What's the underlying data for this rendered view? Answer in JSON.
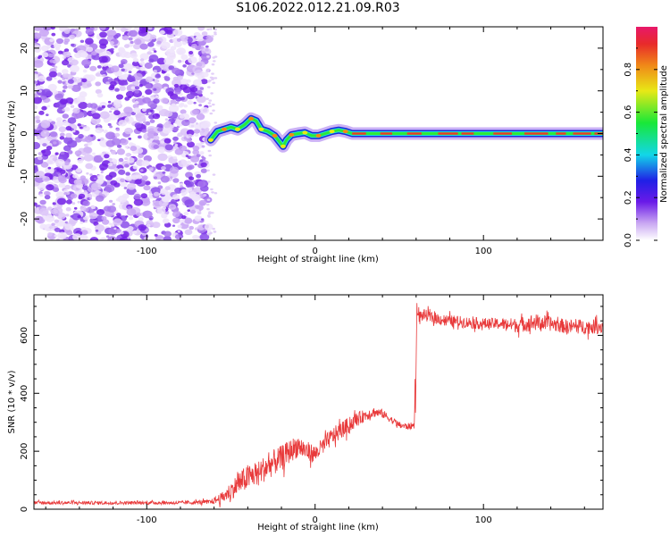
{
  "title": "S106.2022.012.21.09.R03",
  "colors": {
    "snr_line": "#e8393a",
    "ridge_outer": "#1a2ad8",
    "ridge_mid": "#1fe0e0",
    "ridge_core": "#e83b2a",
    "noise": "#8a3cf0"
  },
  "chart_data": [
    {
      "type": "heatmap",
      "xlabel": "Height of straight line (km)",
      "ylabel": "Frequency (Hz)",
      "xlim": [
        -167,
        171
      ],
      "ylim": [
        -25,
        25
      ],
      "xticks": [
        -100,
        0,
        100
      ],
      "yticks": [
        -20,
        -10,
        0,
        10,
        20
      ],
      "colorbar": {
        "label": "Normalized spectral amplitude",
        "ticks": [
          0.0,
          0.2,
          0.4,
          0.6,
          0.8
        ],
        "range": [
          0,
          1
        ]
      },
      "noise_region_x": [
        -167,
        -62
      ],
      "ridge": {
        "x": [
          -62,
          -58,
          -54,
          -50,
          -46,
          -42,
          -38,
          -35,
          -32,
          -28,
          -24,
          -21,
          -19,
          -17,
          -14,
          -10,
          -6,
          -2,
          2,
          6,
          10,
          14,
          18,
          22,
          171
        ],
        "freq": [
          -1.5,
          0.5,
          1.0,
          1.5,
          1.0,
          2.0,
          3.5,
          3.0,
          1.0,
          0.5,
          -0.5,
          -2.0,
          -3.0,
          -1.5,
          -0.3,
          0.0,
          0.2,
          -0.5,
          -0.5,
          0.0,
          0.5,
          0.8,
          0.5,
          0.0,
          0.0
        ]
      }
    },
    {
      "type": "line",
      "xlabel": "Height of straight line (km)",
      "ylabel": "SNR (10 * v/v)",
      "xlim": [
        -167,
        171
      ],
      "ylim": [
        0,
        740
      ],
      "xticks": [
        -100,
        0,
        100
      ],
      "yticks": [
        0,
        200,
        400,
        600
      ],
      "series": [
        {
          "x": [
            -167,
            -140,
            -110,
            -80,
            -62,
            -55,
            -45,
            -40,
            -35,
            -30,
            -25,
            -20,
            -15,
            -10,
            -5,
            0,
            5,
            10,
            15,
            20,
            25,
            30,
            35,
            40,
            45,
            50,
            55,
            59,
            60,
            61,
            65,
            70,
            80,
            90,
            100,
            110,
            120,
            130,
            140,
            150,
            160,
            171
          ],
          "y": [
            22,
            22,
            22,
            22,
            25,
            40,
            90,
            110,
            120,
            140,
            160,
            175,
            200,
            220,
            200,
            190,
            220,
            250,
            270,
            290,
            310,
            325,
            335,
            330,
            310,
            290,
            285,
            290,
            720,
            665,
            670,
            660,
            650,
            645,
            640,
            640,
            635,
            645,
            640,
            630,
            630,
            630
          ],
          "noise": [
            6,
            6,
            6,
            6,
            8,
            20,
            40,
            45,
            40,
            45,
            45,
            45,
            40,
            40,
            35,
            30,
            30,
            30,
            30,
            28,
            25,
            20,
            18,
            15,
            12,
            12,
            12,
            12,
            0,
            20,
            20,
            20,
            20,
            20,
            20,
            20,
            25,
            30,
            25,
            25,
            25,
            25
          ]
        }
      ]
    }
  ]
}
